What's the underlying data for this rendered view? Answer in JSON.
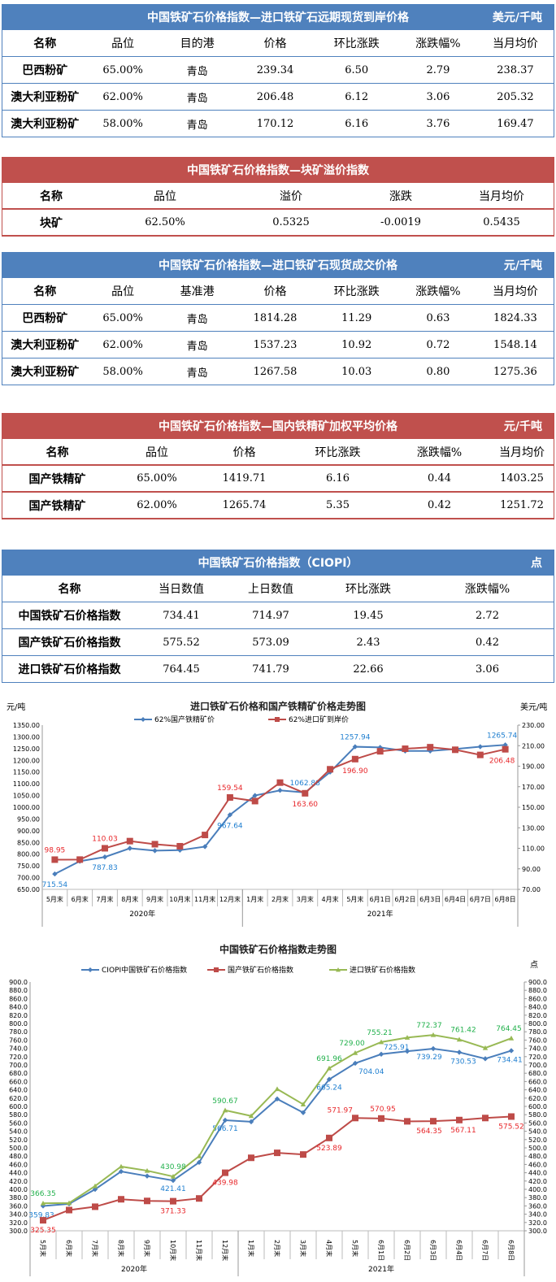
{
  "colors": {
    "blue_header": "#4f81bd",
    "red_header": "#c0504d",
    "series_blue": "#4a7ebb",
    "series_red": "#be4b48",
    "series_green": "#98b954"
  },
  "tables": [
    {
      "title": "中国铁矿石价格指数—进口铁矿石远期现货到岸价格",
      "unit": "美元/千吨",
      "theme": "blue",
      "headers": [
        "名称",
        "品位",
        "目的港",
        "价格",
        "环比涨跌",
        "涨跌幅%",
        "当月均价"
      ],
      "rows": [
        [
          "巴西粉矿",
          "65.00%",
          "青岛",
          "239.34",
          "6.50",
          "2.79",
          "238.37"
        ],
        [
          "澳大利亚粉矿",
          "62.00%",
          "青岛",
          "206.48",
          "6.12",
          "3.06",
          "205.32"
        ],
        [
          "澳大利亚粉矿",
          "58.00%",
          "青岛",
          "170.12",
          "6.16",
          "3.76",
          "169.47"
        ]
      ]
    },
    {
      "title": "中国铁矿石价格指数—块矿溢价指数",
      "unit": "",
      "theme": "red",
      "headers": [
        "名称",
        "品位",
        "溢价",
        "涨跌",
        "当月均价"
      ],
      "rows": [
        [
          "块矿",
          "62.50%",
          "0.5325",
          "-0.0019",
          "0.5435"
        ]
      ]
    },
    {
      "title": "中国铁矿石价格指数—进口铁矿石现货成交价格",
      "unit": "元/千吨",
      "theme": "blue",
      "headers": [
        "名称",
        "品位",
        "基准港",
        "价格",
        "环比涨跌",
        "涨跌幅%",
        "当月均价"
      ],
      "rows": [
        [
          "巴西粉矿",
          "65.00%",
          "青岛",
          "1814.28",
          "11.29",
          "0.63",
          "1824.33"
        ],
        [
          "澳大利亚粉矿",
          "62.00%",
          "青岛",
          "1537.23",
          "10.92",
          "0.72",
          "1548.14"
        ],
        [
          "澳大利亚粉矿",
          "58.00%",
          "青岛",
          "1267.58",
          "10.03",
          "0.80",
          "1275.36"
        ]
      ]
    },
    {
      "title": "中国铁矿石价格指数—国内铁精矿加权平均价格",
      "unit": "元/千吨",
      "theme": "red",
      "headers": [
        "名称",
        "品位",
        "价格",
        "环比涨跌",
        "涨跌幅%",
        "当月均价"
      ],
      "rows": [
        [
          "国产铁精矿",
          "65.00%",
          "1419.71",
          "6.16",
          "0.44",
          "1403.25"
        ],
        [
          "国产铁精矿",
          "62.00%",
          "1265.74",
          "5.35",
          "0.42",
          "1251.72"
        ]
      ]
    },
    {
      "title": "中国铁矿石价格指数（CIOPI）",
      "unit": "点",
      "theme": "blue",
      "headers": [
        "名称",
        "当日数值",
        "上日数值",
        "环比涨跌",
        "涨跌幅%"
      ],
      "rows": [
        [
          "中国铁矿石价格指数",
          "734.41",
          "714.97",
          "19.45",
          "2.72"
        ],
        [
          "国产铁矿石价格指数",
          "575.52",
          "573.09",
          "2.43",
          "0.42"
        ],
        [
          "进口铁矿石价格指数",
          "764.45",
          "741.79",
          "22.66",
          "3.06"
        ]
      ]
    }
  ],
  "chart_data": [
    {
      "type": "line",
      "title": "进口铁矿石价格和国产铁精矿价格走势图",
      "ylabel": "元/吨",
      "y2label": "美元/吨",
      "ylim": [
        650,
        1350
      ],
      "y2lim": [
        70,
        230
      ],
      "categories": [
        "5月末",
        "6月末",
        "7月末",
        "8月末",
        "9月末",
        "10月末",
        "11月末",
        "12月末",
        "1月末",
        "2月末",
        "3月末",
        "4月末",
        "5月末",
        "6月1日",
        "6月2日",
        "6月3日",
        "6月4日",
        "6月7日",
        "6月8日"
      ],
      "groups": [
        {
          "label": "2020年",
          "count": 8
        },
        {
          "label": "2021年",
          "count": 11
        }
      ],
      "series": [
        {
          "name": "62%国产铁精矿价",
          "axis": "left",
          "color": "#4a7ebb",
          "marker": "diamond",
          "values": [
            715.54,
            770,
            787.83,
            825,
            815,
            817,
            832,
            967.64,
            1050,
            1072,
            1062.88,
            1150,
            1257.94,
            1255,
            1240,
            1240,
            1248,
            1258,
            1265.74
          ],
          "labels": {
            "0": "715.54",
            "2": "787.83",
            "7": "967.64",
            "10": "1062.88",
            "12": "1257.94",
            "18": "1265.74"
          }
        },
        {
          "name": "62%进口矿到岸价",
          "axis": "right",
          "color": "#be4b48",
          "marker": "square",
          "values": [
            98.95,
            99,
            110.03,
            117,
            114,
            112,
            123,
            159.54,
            156,
            174,
            163.6,
            187,
            196.9,
            204.5,
            207,
            208.5,
            206,
            201,
            206.48
          ],
          "labels": {
            "0": "98.95",
            "2": "110.03",
            "7": "159.54",
            "10": "163.60",
            "12": "196.90",
            "18": "206.48"
          }
        }
      ],
      "grid": false,
      "legend": "top"
    },
    {
      "type": "line",
      "title": "中国铁矿石价格指数走势图",
      "y2label": "点",
      "ylim": [
        300,
        900
      ],
      "y2lim": [
        300,
        900
      ],
      "categories": [
        "5月末",
        "6月末",
        "7月末",
        "8月末",
        "9月末",
        "10月末",
        "11月末",
        "12月末",
        "1月末",
        "2月末",
        "3月末",
        "4月末",
        "5月末",
        "6月1日",
        "6月2日",
        "6月3日",
        "6月4日",
        "6月7日",
        "6月8日"
      ],
      "groups": [
        {
          "label": "2020年",
          "count": 8
        },
        {
          "label": "2021年",
          "count": 11
        }
      ],
      "series": [
        {
          "name": "CIOPI中国铁矿石价格指数",
          "color": "#4a7ebb",
          "marker": "diamond",
          "values": [
            359.83,
            365,
            400,
            443,
            432,
            421.41,
            465,
            566.71,
            563,
            618,
            585,
            665.24,
            704.04,
            725.91,
            733,
            739.29,
            730.53,
            715,
            734.41
          ],
          "labels": {
            "0": "359.83",
            "5": "421.41",
            "7": "566.71",
            "11": "665.24",
            "12": "704.04",
            "13": "725.91",
            "15": "739.29",
            "16": "730.53",
            "18": "734.41"
          }
        },
        {
          "name": "国产铁矿石价格指数",
          "color": "#be4b48",
          "marker": "square",
          "values": [
            325.35,
            350,
            358,
            376,
            372,
            371.33,
            378,
            439.98,
            476,
            488,
            484,
            523.89,
            571.97,
            570.95,
            564,
            564.35,
            567.11,
            572,
            575.52
          ],
          "labels": {
            "0": "325.35",
            "5": "371.33",
            "7": "439.98",
            "11": "523.89",
            "12": "571.97",
            "13": "570.95",
            "15": "564.35",
            "16": "567.11",
            "18": "575.52"
          }
        },
        {
          "name": "进口铁矿石价格指数",
          "color": "#98b954",
          "marker": "triangle",
          "values": [
            366.35,
            367,
            408,
            455,
            445,
            430.98,
            480,
            590.67,
            577,
            642,
            605,
            691.96,
            729.0,
            755.21,
            766,
            772.37,
            761.42,
            741,
            764.45
          ],
          "labels": {
            "0": "366.35",
            "5": "430.98",
            "7": "590.67",
            "11": "691.96",
            "12": "729.00",
            "13": "755.21",
            "15": "772.37",
            "16": "761.42",
            "18": "764.45"
          }
        }
      ],
      "grid": false,
      "legend": "top"
    }
  ]
}
